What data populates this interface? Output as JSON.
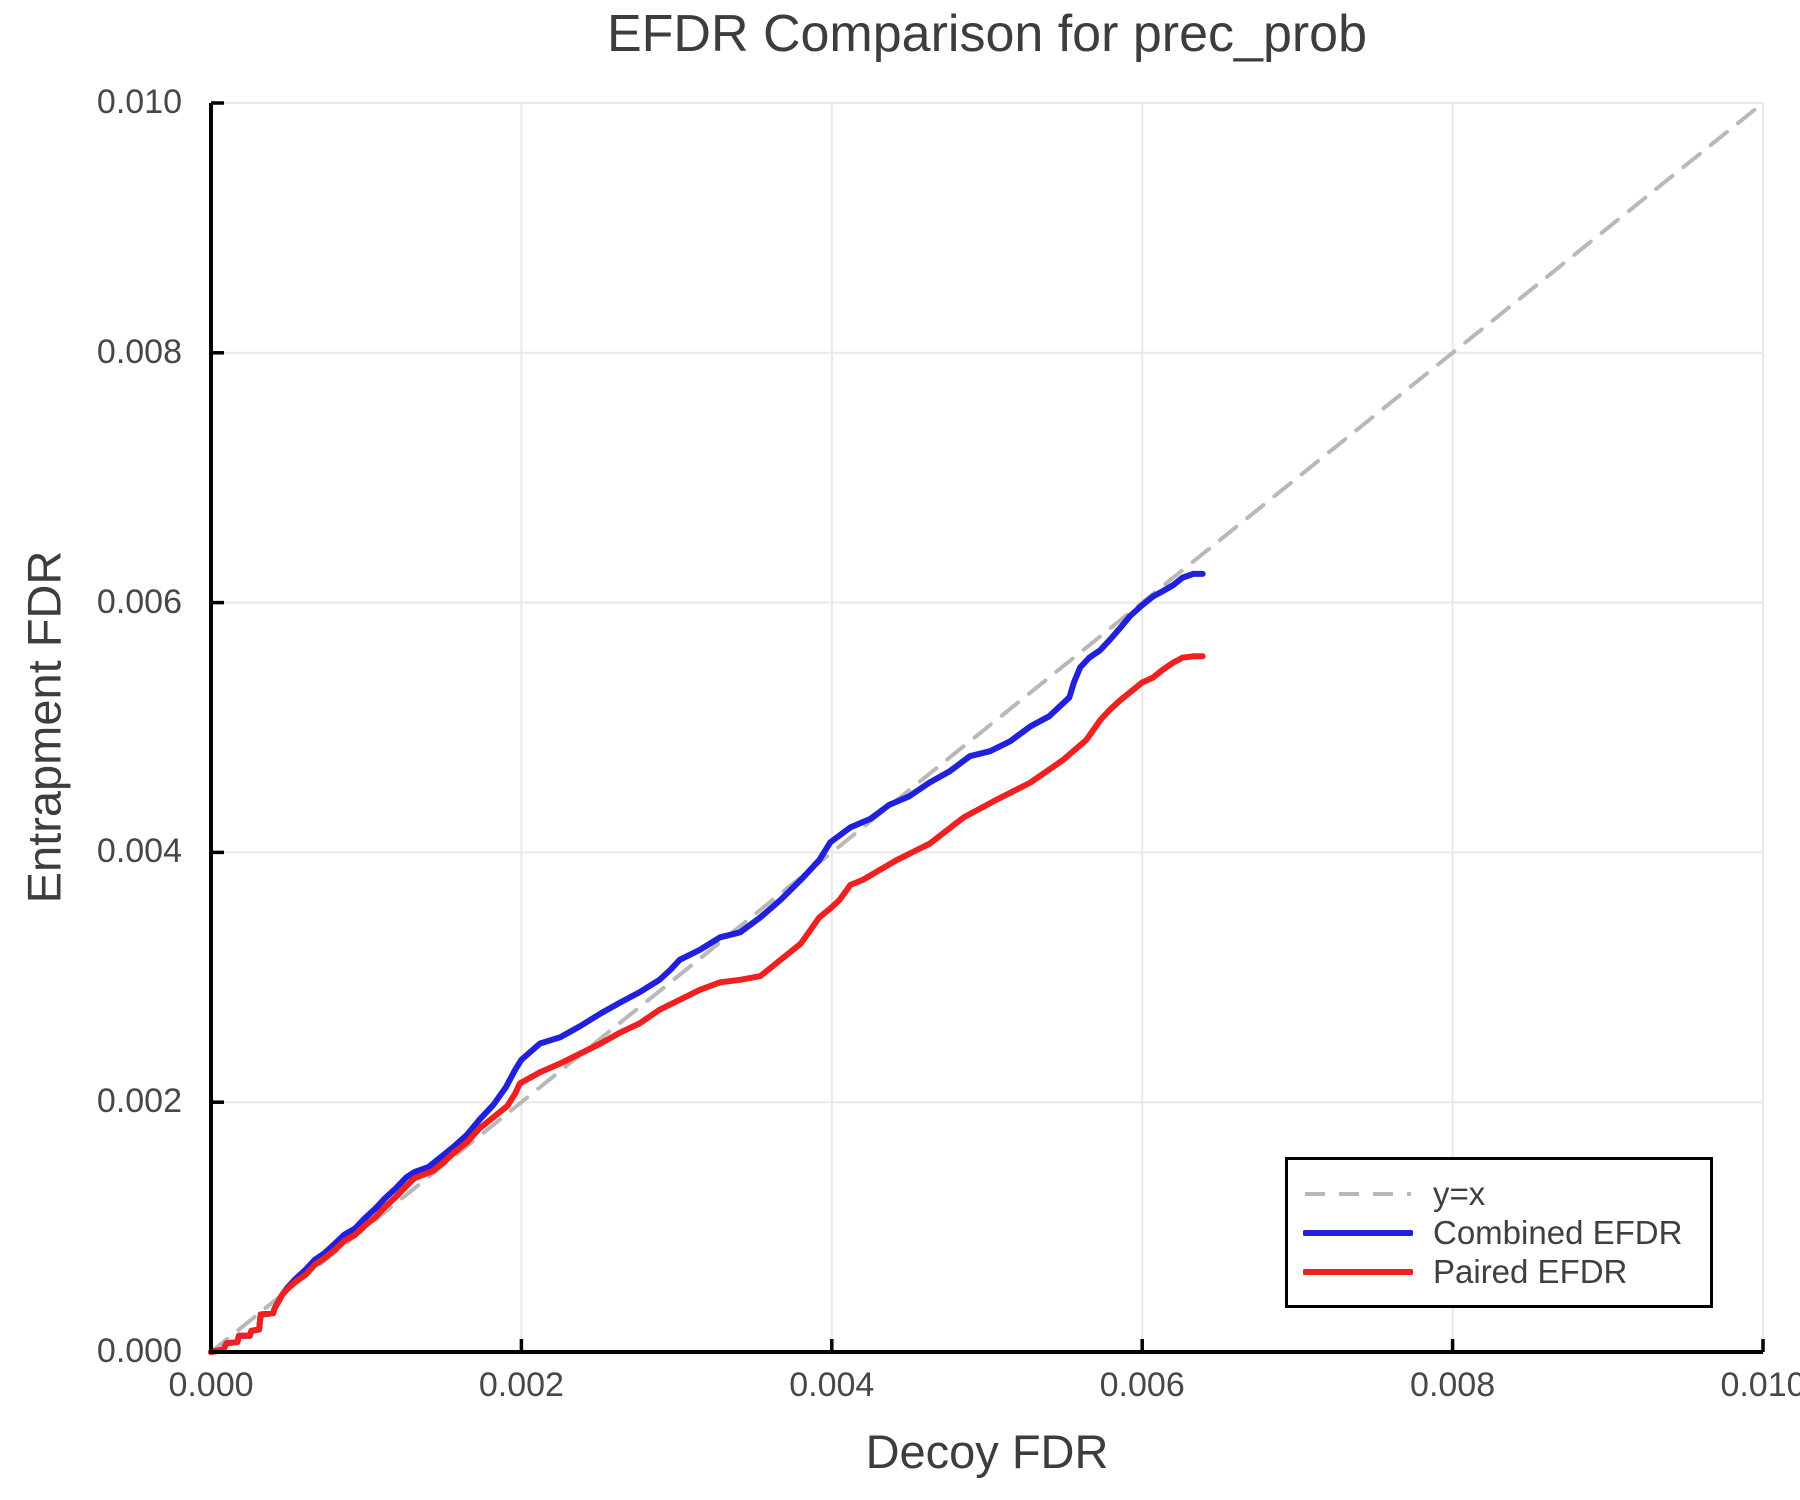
{
  "title": "EFDR Comparison for prec_prob",
  "chart_data": {
    "type": "line",
    "title": "EFDR Comparison for prec_prob",
    "xlabel": "Decoy FDR",
    "ylabel": "Entrapment FDR",
    "xlim": [
      0.0,
      0.01
    ],
    "ylim": [
      0.0,
      0.01
    ],
    "xtick_labels": [
      "0.000",
      "0.002",
      "0.004",
      "0.006",
      "0.008",
      "0.010"
    ],
    "ytick_labels": [
      "0.000",
      "0.002",
      "0.004",
      "0.006",
      "0.008",
      "0.010"
    ],
    "xtick_values": [
      0.0,
      0.002,
      0.004,
      0.006,
      0.008,
      0.01
    ],
    "ytick_values": [
      0.0,
      0.002,
      0.004,
      0.006,
      0.008,
      0.01
    ],
    "grid": true,
    "grid_color": "#e8e8e8",
    "spine_color": "#000000",
    "text_color": "#3d3d3d",
    "legend_position": "lower right",
    "series": [
      {
        "name": "y=x",
        "style": "dashed",
        "color": "#b8b8b8",
        "points": [
          [
            0.0,
            0.0
          ],
          [
            0.01,
            0.01
          ]
        ]
      },
      {
        "name": "Combined EFDR",
        "style": "solid",
        "color": "#2020dd",
        "points": [
          [
            0.0,
            0.0
          ],
          [
            8e-05,
            2e-05
          ],
          [
            0.0001,
            7e-05
          ],
          [
            0.00017,
            8e-05
          ],
          [
            0.00018,
            0.00013
          ],
          [
            0.00025,
            0.00013
          ],
          [
            0.00026,
            0.00017
          ],
          [
            0.00031,
            0.00018
          ],
          [
            0.00032,
            0.0003
          ],
          [
            0.0004,
            0.00031
          ],
          [
            0.00041,
            0.00035
          ],
          [
            0.00046,
            0.00046
          ],
          [
            0.00049,
            0.00051
          ],
          [
            0.00054,
            0.00058
          ],
          [
            0.00061,
            0.00066
          ],
          [
            0.00067,
            0.00074
          ],
          [
            0.00073,
            0.00079
          ],
          [
            0.0008,
            0.00087
          ],
          [
            0.00086,
            0.00094
          ],
          [
            0.00093,
            0.00099
          ],
          [
            0.00099,
            0.00107
          ],
          [
            0.00106,
            0.00115
          ],
          [
            0.00112,
            0.00123
          ],
          [
            0.00119,
            0.00131
          ],
          [
            0.00126,
            0.0014
          ],
          [
            0.00131,
            0.00144
          ],
          [
            0.0014,
            0.00148
          ],
          [
            0.00148,
            0.00156
          ],
          [
            0.00156,
            0.00164
          ],
          [
            0.00165,
            0.00174
          ],
          [
            0.00173,
            0.00186
          ],
          [
            0.00182,
            0.00198
          ],
          [
            0.0019,
            0.00212
          ],
          [
            0.00196,
            0.00226
          ],
          [
            0.002,
            0.00234
          ],
          [
            0.00212,
            0.00247
          ],
          [
            0.00225,
            0.00252
          ],
          [
            0.00238,
            0.00261
          ],
          [
            0.00251,
            0.00271
          ],
          [
            0.00264,
            0.0028
          ],
          [
            0.00276,
            0.00288
          ],
          [
            0.00289,
            0.00298
          ],
          [
            0.00296,
            0.00306
          ],
          [
            0.00302,
            0.00314
          ],
          [
            0.00315,
            0.00322
          ],
          [
            0.00328,
            0.00332
          ],
          [
            0.00341,
            0.00336
          ],
          [
            0.00354,
            0.00348
          ],
          [
            0.00367,
            0.00362
          ],
          [
            0.0038,
            0.00378
          ],
          [
            0.00392,
            0.00394
          ],
          [
            0.00399,
            0.00408
          ],
          [
            0.00412,
            0.0042
          ],
          [
            0.00425,
            0.00427
          ],
          [
            0.00437,
            0.00438
          ],
          [
            0.0045,
            0.00445
          ],
          [
            0.00463,
            0.00456
          ],
          [
            0.00476,
            0.00465
          ],
          [
            0.00489,
            0.00477
          ],
          [
            0.00502,
            0.00481
          ],
          [
            0.00515,
            0.00489
          ],
          [
            0.00528,
            0.00501
          ],
          [
            0.0054,
            0.00509
          ],
          [
            0.00553,
            0.00524
          ],
          [
            0.00556,
            0.00536
          ],
          [
            0.0056,
            0.00548
          ],
          [
            0.00566,
            0.00556
          ],
          [
            0.00573,
            0.00562
          ],
          [
            0.00579,
            0.0057
          ],
          [
            0.00586,
            0.0058
          ],
          [
            0.00592,
            0.00589
          ],
          [
            0.006,
            0.00598
          ],
          [
            0.00607,
            0.00605
          ],
          [
            0.00613,
            0.00609
          ],
          [
            0.0062,
            0.00614
          ],
          [
            0.00626,
            0.0062
          ],
          [
            0.00633,
            0.00623
          ],
          [
            0.00639,
            0.00623
          ]
        ]
      },
      {
        "name": "Paired EFDR",
        "style": "solid",
        "color": "#f02020",
        "points": [
          [
            0.0,
            0.0
          ],
          [
            8e-05,
            2e-05
          ],
          [
            0.0001,
            7e-05
          ],
          [
            0.00017,
            8e-05
          ],
          [
            0.00018,
            0.00013
          ],
          [
            0.00025,
            0.00013
          ],
          [
            0.00026,
            0.00017
          ],
          [
            0.00031,
            0.00018
          ],
          [
            0.00032,
            0.0003
          ],
          [
            0.0004,
            0.00031
          ],
          [
            0.00041,
            0.00035
          ],
          [
            0.00046,
            0.00046
          ],
          [
            0.00049,
            0.0005
          ],
          [
            0.00054,
            0.00056
          ],
          [
            0.00061,
            0.00062
          ],
          [
            0.00067,
            0.0007
          ],
          [
            0.00073,
            0.00075
          ],
          [
            0.0008,
            0.00082
          ],
          [
            0.00086,
            0.00089
          ],
          [
            0.00093,
            0.00094
          ],
          [
            0.00099,
            0.00101
          ],
          [
            0.00106,
            0.00108
          ],
          [
            0.00112,
            0.00116
          ],
          [
            0.00119,
            0.00124
          ],
          [
            0.00126,
            0.00133
          ],
          [
            0.00131,
            0.00139
          ],
          [
            0.00143,
            0.00145
          ],
          [
            0.0015,
            0.00152
          ],
          [
            0.00156,
            0.00159
          ],
          [
            0.00165,
            0.00168
          ],
          [
            0.00173,
            0.00179
          ],
          [
            0.00182,
            0.00188
          ],
          [
            0.00191,
            0.00197
          ],
          [
            0.00196,
            0.00207
          ],
          [
            0.00199,
            0.00215
          ],
          [
            0.00212,
            0.00224
          ],
          [
            0.00225,
            0.00231
          ],
          [
            0.00238,
            0.00239
          ],
          [
            0.00251,
            0.00247
          ],
          [
            0.00264,
            0.00256
          ],
          [
            0.00276,
            0.00263
          ],
          [
            0.00289,
            0.00274
          ],
          [
            0.00302,
            0.00282
          ],
          [
            0.00315,
            0.0029
          ],
          [
            0.00328,
            0.00296
          ],
          [
            0.00341,
            0.00298
          ],
          [
            0.00354,
            0.00301
          ],
          [
            0.00367,
            0.00314
          ],
          [
            0.0038,
            0.00327
          ],
          [
            0.00392,
            0.00348
          ],
          [
            0.00399,
            0.00355
          ],
          [
            0.00405,
            0.00362
          ],
          [
            0.00412,
            0.00374
          ],
          [
            0.0042,
            0.00378
          ],
          [
            0.00442,
            0.00394
          ],
          [
            0.00463,
            0.00407
          ],
          [
            0.00485,
            0.00428
          ],
          [
            0.00506,
            0.00442
          ],
          [
            0.00528,
            0.00456
          ],
          [
            0.00549,
            0.00474
          ],
          [
            0.00564,
            0.0049
          ],
          [
            0.00573,
            0.00506
          ],
          [
            0.00579,
            0.00514
          ],
          [
            0.00586,
            0.00522
          ],
          [
            0.00592,
            0.00528
          ],
          [
            0.006,
            0.00536
          ],
          [
            0.00607,
            0.0054
          ],
          [
            0.00613,
            0.00546
          ],
          [
            0.0062,
            0.00552
          ],
          [
            0.00626,
            0.00556
          ],
          [
            0.00633,
            0.00557
          ],
          [
            0.00639,
            0.00557
          ]
        ]
      }
    ]
  },
  "legend": {
    "items": [
      {
        "label": "y=x",
        "color": "#b8b8b8",
        "style": "dashed"
      },
      {
        "label": "Combined EFDR",
        "color": "#2020dd",
        "style": "solid"
      },
      {
        "label": "Paired EFDR",
        "color": "#f02020",
        "style": "solid"
      }
    ]
  }
}
